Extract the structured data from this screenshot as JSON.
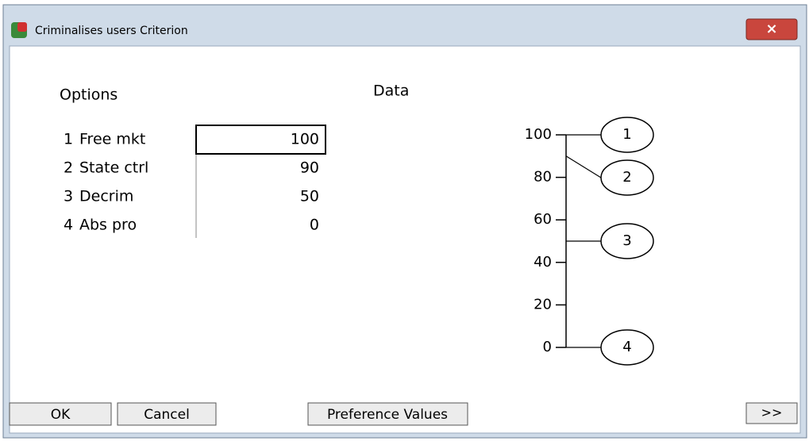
{
  "window": {
    "title": "Criminalises users Criterion",
    "close": "×"
  },
  "options_heading": "Options",
  "data_heading": "Data",
  "options": [
    {
      "number": 1,
      "name": "Free mkt",
      "value": 100
    },
    {
      "number": 2,
      "name": "State ctrl",
      "value": 90
    },
    {
      "number": 3,
      "name": "Decrim",
      "value": 50
    },
    {
      "number": 4,
      "name": "Abs pro",
      "value": 0
    }
  ],
  "scale": {
    "range": [
      0,
      100
    ],
    "ticks": [
      0,
      20,
      40,
      60,
      80,
      100
    ]
  },
  "buttons": {
    "ok": "OK",
    "cancel": "Cancel",
    "preference": "Preference Values",
    "more": ">>"
  }
}
